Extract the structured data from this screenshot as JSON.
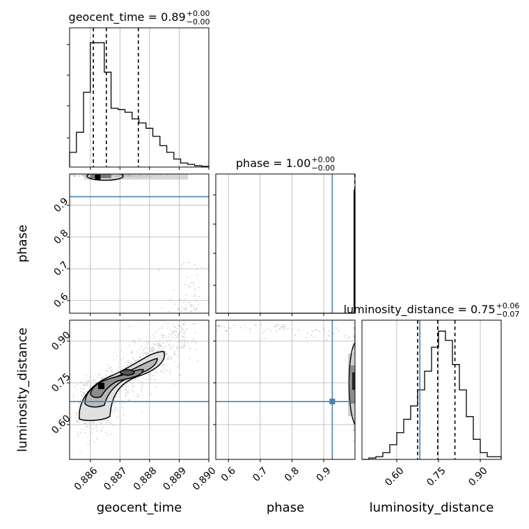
{
  "colors": {
    "truth": "#4682b4",
    "line": "#000000",
    "grid": "#b0b0b0",
    "scatter": "#9a9a9a"
  },
  "chart_data": {
    "type": "corner",
    "parameters": [
      "geocent_time",
      "phase",
      "luminosity_distance"
    ],
    "axis_labels": [
      "geocent_time",
      "phase",
      "luminosity_distance"
    ],
    "titles": [
      {
        "param": "geocent_time",
        "text": "geocent_time = 0.89",
        "sup": "+0.00",
        "sub": "−0.00"
      },
      {
        "param": "phase",
        "text": "phase = 1.00",
        "sup": "+0.00",
        "sub": "−0.00"
      },
      {
        "param": "luminosity_distance",
        "text": "luminosity_distance = 0.75",
        "sup": "+0.06",
        "sub": "−0.07"
      }
    ],
    "ranges": {
      "geocent_time": [
        0.8853,
        0.89
      ],
      "phase": [
        0.56,
        0.9985
      ],
      "luminosity_distance": [
        0.475,
        0.975
      ]
    },
    "ticks": {
      "geocent_time": [
        {
          "v": 0.886,
          "label": "0.886"
        },
        {
          "v": 0.887,
          "label": "0.887"
        },
        {
          "v": 0.888,
          "label": "0.888"
        },
        {
          "v": 0.889,
          "label": "0.889"
        },
        {
          "v": 0.89,
          "label": "0.890"
        }
      ],
      "phase": [
        {
          "v": 0.6,
          "label": "0.6"
        },
        {
          "v": 0.7,
          "label": "0.7"
        },
        {
          "v": 0.8,
          "label": "0.8"
        },
        {
          "v": 0.9,
          "label": "0.9"
        }
      ],
      "luminosity_distance": [
        {
          "v": 0.6,
          "label": "0.60"
        },
        {
          "v": 0.75,
          "label": "0.75"
        },
        {
          "v": 0.9,
          "label": "0.90"
        }
      ]
    },
    "truths": {
      "phase": 0.927,
      "luminosity_distance": 0.683
    },
    "quantiles": {
      "geocent_time": [
        0.8861,
        0.88654,
        0.88762
      ],
      "phase": [
        0.998
      ],
      "luminosity_distance": [
        0.675,
        0.747,
        0.809
      ]
    },
    "histograms": {
      "geocent_time": {
        "edges": [
          0.8853,
          0.88553,
          0.88577,
          0.886,
          0.88624,
          0.88647,
          0.8867,
          0.88694,
          0.88717,
          0.88741,
          0.88764,
          0.88788,
          0.88811,
          0.88835,
          0.88858,
          0.88882,
          0.88905,
          0.88929,
          0.88952,
          0.88976,
          0.89
        ],
        "counts": [
          0.11,
          0.26,
          0.56,
          0.93,
          0.93,
          0.71,
          0.44,
          0.43,
          0.41,
          0.36,
          0.33,
          0.29,
          0.23,
          0.16,
          0.11,
          0.06,
          0.03,
          0.02,
          0.01,
          0.005
        ]
      },
      "phase": {
        "edges": [
          0.56,
          0.9955,
          0.9985
        ],
        "counts": [
          0.0,
          0.92
        ]
      },
      "luminosity_distance": {
        "edges": [
          0.475,
          0.5,
          0.525,
          0.55,
          0.575,
          0.6,
          0.625,
          0.65,
          0.675,
          0.7,
          0.725,
          0.75,
          0.775,
          0.8,
          0.825,
          0.85,
          0.875,
          0.9,
          0.925,
          0.95,
          0.975
        ],
        "counts": [
          0.0,
          0.01,
          0.02,
          0.05,
          0.11,
          0.2,
          0.3,
          0.4,
          0.52,
          0.66,
          0.84,
          0.96,
          0.89,
          0.71,
          0.52,
          0.32,
          0.15,
          0.05,
          0.02,
          0.02
        ]
      }
    },
    "scatter_notes": "Dense grey sample points with black density contours in the 2D panels"
  }
}
